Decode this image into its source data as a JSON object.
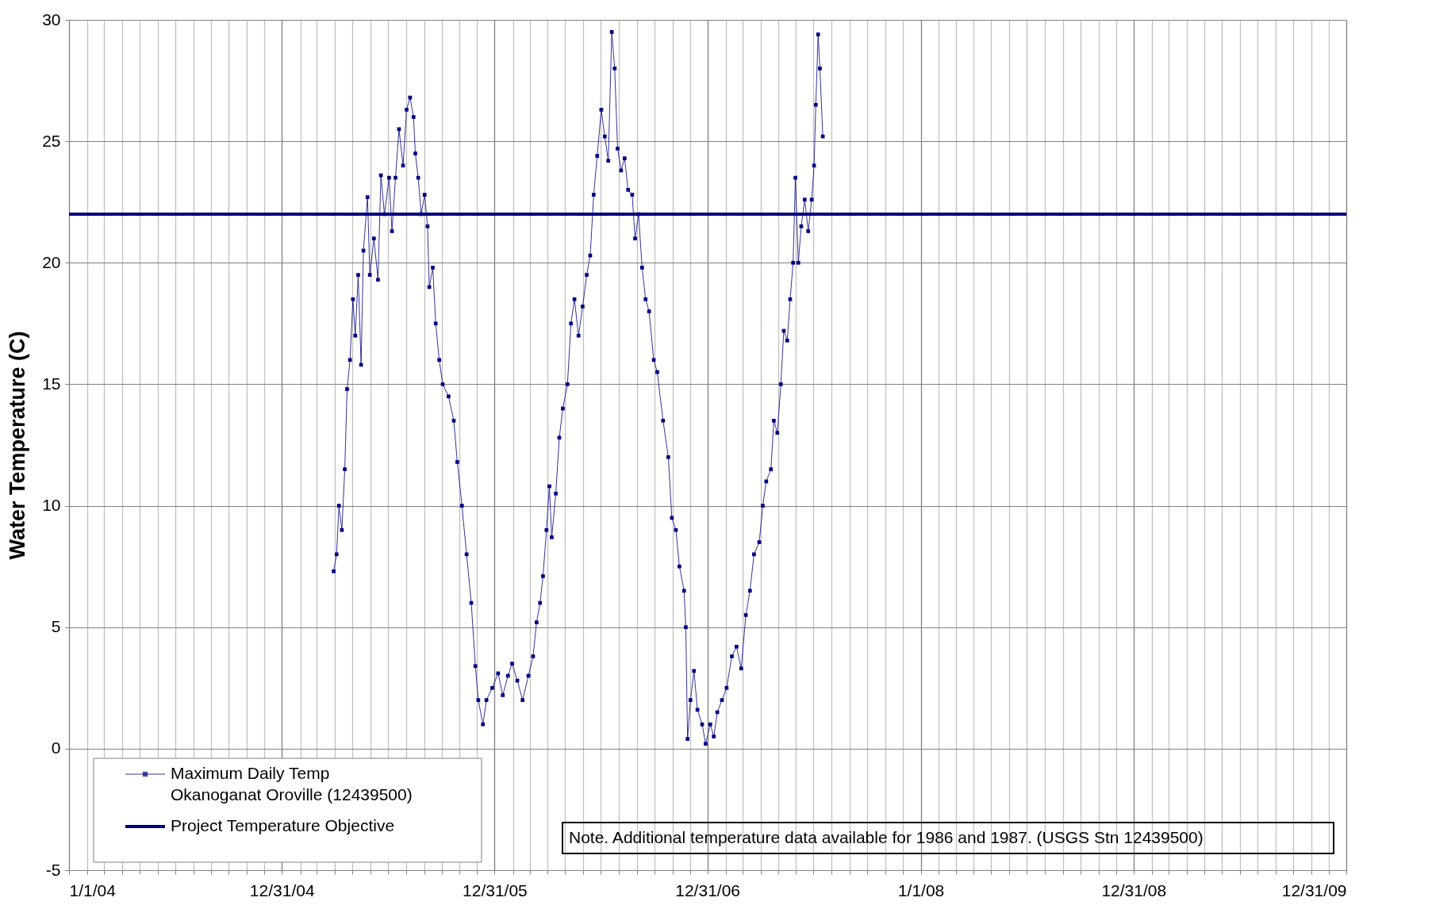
{
  "chart_data": {
    "type": "line",
    "ylabel": "Water Temperature (C)",
    "xlim": [
      "2004-01-01",
      "2009-12-31"
    ],
    "ylim": [
      -5,
      30
    ],
    "yticks": [
      -5,
      0,
      5,
      10,
      15,
      20,
      25,
      30
    ],
    "xticks": [
      {
        "value": "2004-01-01",
        "label": "1/1/04"
      },
      {
        "value": "2004-02-01",
        "label": null
      },
      {
        "value": "2004-03-01",
        "label": null
      },
      {
        "value": "2004-04-01",
        "label": null
      },
      {
        "value": "2004-05-01",
        "label": null
      },
      {
        "value": "2004-06-01",
        "label": null
      },
      {
        "value": "2004-07-01",
        "label": null
      },
      {
        "value": "2004-08-01",
        "label": null
      },
      {
        "value": "2004-09-01",
        "label": null
      },
      {
        "value": "2004-10-01",
        "label": null
      },
      {
        "value": "2004-11-01",
        "label": null
      },
      {
        "value": "2004-12-01",
        "label": null
      },
      {
        "value": "2004-12-31",
        "label": "12/31/04"
      },
      {
        "value": "2005-02-01",
        "label": null
      },
      {
        "value": "2005-03-01",
        "label": null
      },
      {
        "value": "2005-04-01",
        "label": null
      },
      {
        "value": "2005-05-01",
        "label": null
      },
      {
        "value": "2005-06-01",
        "label": null
      },
      {
        "value": "2005-07-01",
        "label": null
      },
      {
        "value": "2005-08-01",
        "label": null
      },
      {
        "value": "2005-09-01",
        "label": null
      },
      {
        "value": "2005-10-01",
        "label": null
      },
      {
        "value": "2005-11-01",
        "label": null
      },
      {
        "value": "2005-12-01",
        "label": null
      },
      {
        "value": "2005-12-31",
        "label": "12/31/05"
      },
      {
        "value": "2006-02-01",
        "label": null
      },
      {
        "value": "2006-03-01",
        "label": null
      },
      {
        "value": "2006-04-01",
        "label": null
      },
      {
        "value": "2006-05-01",
        "label": null
      },
      {
        "value": "2006-06-01",
        "label": null
      },
      {
        "value": "2006-07-01",
        "label": null
      },
      {
        "value": "2006-08-01",
        "label": null
      },
      {
        "value": "2006-09-01",
        "label": null
      },
      {
        "value": "2006-10-01",
        "label": null
      },
      {
        "value": "2006-11-01",
        "label": null
      },
      {
        "value": "2006-12-01",
        "label": null
      },
      {
        "value": "2006-12-31",
        "label": "12/31/06"
      },
      {
        "value": "2007-02-01",
        "label": null
      },
      {
        "value": "2007-03-01",
        "label": null
      },
      {
        "value": "2007-04-01",
        "label": null
      },
      {
        "value": "2007-05-01",
        "label": null
      },
      {
        "value": "2007-06-01",
        "label": null
      },
      {
        "value": "2007-07-01",
        "label": null
      },
      {
        "value": "2007-08-01",
        "label": null
      },
      {
        "value": "2007-09-01",
        "label": null
      },
      {
        "value": "2007-10-01",
        "label": null
      },
      {
        "value": "2007-11-01",
        "label": null
      },
      {
        "value": "2007-12-01",
        "label": null
      },
      {
        "value": "2008-01-01",
        "label": "1/1/08"
      },
      {
        "value": "2008-02-01",
        "label": null
      },
      {
        "value": "2008-03-01",
        "label": null
      },
      {
        "value": "2008-04-01",
        "label": null
      },
      {
        "value": "2008-05-01",
        "label": null
      },
      {
        "value": "2008-06-01",
        "label": null
      },
      {
        "value": "2008-07-01",
        "label": null
      },
      {
        "value": "2008-08-01",
        "label": null
      },
      {
        "value": "2008-09-01",
        "label": null
      },
      {
        "value": "2008-10-01",
        "label": null
      },
      {
        "value": "2008-11-01",
        "label": null
      },
      {
        "value": "2008-12-01",
        "label": null
      },
      {
        "value": "2008-12-31",
        "label": "12/31/08"
      },
      {
        "value": "2009-02-01",
        "label": null
      },
      {
        "value": "2009-03-01",
        "label": null
      },
      {
        "value": "2009-04-01",
        "label": null
      },
      {
        "value": "2009-05-01",
        "label": null
      },
      {
        "value": "2009-06-01",
        "label": null
      },
      {
        "value": "2009-07-01",
        "label": null
      },
      {
        "value": "2009-08-01",
        "label": null
      },
      {
        "value": "2009-09-01",
        "label": null
      },
      {
        "value": "2009-10-01",
        "label": null
      },
      {
        "value": "2009-11-01",
        "label": null
      },
      {
        "value": "2009-12-01",
        "label": null
      },
      {
        "value": "2009-12-31",
        "label": "12/31/09"
      }
    ],
    "x": [
      "2005-03-30",
      "2005-04-04",
      "2005-04-08",
      "2005-04-13",
      "2005-04-18",
      "2005-04-22",
      "2005-04-27",
      "2005-05-02",
      "2005-05-06",
      "2005-05-11",
      "2005-05-16",
      "2005-05-20",
      "2005-05-27",
      "2005-05-31",
      "2005-06-07",
      "2005-06-14",
      "2005-06-19",
      "2005-06-25",
      "2005-07-03",
      "2005-07-08",
      "2005-07-14",
      "2005-07-20",
      "2005-07-27",
      "2005-08-02",
      "2005-08-08",
      "2005-08-14",
      "2005-08-17",
      "2005-08-22",
      "2005-08-27",
      "2005-09-02",
      "2005-09-07",
      "2005-09-10",
      "2005-09-16",
      "2005-09-21",
      "2005-09-27",
      "2005-10-03",
      "2005-10-13",
      "2005-10-22",
      "2005-10-28",
      "2005-11-05",
      "2005-11-13",
      "2005-11-21",
      "2005-11-28",
      "2005-12-03",
      "2005-12-11",
      "2005-12-17",
      "2005-12-27",
      "2006-01-06",
      "2006-01-14",
      "2006-01-23",
      "2006-01-30",
      "2006-02-08",
      "2006-02-17",
      "2006-02-27",
      "2006-03-07",
      "2006-03-13",
      "2006-03-19",
      "2006-03-24",
      "2006-03-30",
      "2006-04-04",
      "2006-04-08",
      "2006-04-15",
      "2006-04-21",
      "2006-04-27",
      "2006-05-05",
      "2006-05-11",
      "2006-05-17",
      "2006-05-24",
      "2006-05-31",
      "2006-06-07",
      "2006-06-13",
      "2006-06-19",
      "2006-06-25",
      "2006-07-02",
      "2006-07-08",
      "2006-07-14",
      "2006-07-20",
      "2006-07-25",
      "2006-07-30",
      "2006-08-05",
      "2006-08-11",
      "2006-08-17",
      "2006-08-24",
      "2006-08-29",
      "2006-09-04",
      "2006-09-10",
      "2006-09-16",
      "2006-09-22",
      "2006-09-30",
      "2006-10-06",
      "2006-10-16",
      "2006-10-25",
      "2006-10-31",
      "2006-11-07",
      "2006-11-13",
      "2006-11-21",
      "2006-11-24",
      "2006-11-27",
      "2006-12-02",
      "2006-12-08",
      "2006-12-14",
      "2006-12-22",
      "2006-12-28",
      "2007-01-05",
      "2007-01-11",
      "2007-01-17",
      "2007-01-25",
      "2007-02-02",
      "2007-02-11",
      "2007-02-19",
      "2007-02-27",
      "2007-03-07",
      "2007-03-14",
      "2007-03-21",
      "2007-03-30",
      "2007-04-05",
      "2007-04-11",
      "2007-04-19",
      "2007-04-24",
      "2007-04-30",
      "2007-05-06",
      "2007-05-11",
      "2007-05-17",
      "2007-05-22",
      "2007-05-27",
      "2007-05-31",
      "2007-06-05",
      "2007-06-10",
      "2007-06-16",
      "2007-06-22",
      "2007-06-28",
      "2007-07-02",
      "2007-07-05",
      "2007-07-09",
      "2007-07-12",
      "2007-07-17"
    ],
    "series": [
      {
        "name": "Maximum Daily Temp\nOkanoganat Oroville (12439500)",
        "color": "#000080",
        "values": [
          7.3,
          8.0,
          10.0,
          9.0,
          11.5,
          14.8,
          16.0,
          18.5,
          17.0,
          19.5,
          15.8,
          20.5,
          22.7,
          19.5,
          21.0,
          19.3,
          23.6,
          22.0,
          23.5,
          21.3,
          23.5,
          25.5,
          24.0,
          26.3,
          26.8,
          26.0,
          24.5,
          23.5,
          22.0,
          22.8,
          21.5,
          19.0,
          19.8,
          17.5,
          16.0,
          15.0,
          14.5,
          13.5,
          11.8,
          10.0,
          8.0,
          6.0,
          3.4,
          2.0,
          1.0,
          2.0,
          2.5,
          3.1,
          2.2,
          3.0,
          3.5,
          2.8,
          2.0,
          3.0,
          3.8,
          5.2,
          6.0,
          7.1,
          9.0,
          10.8,
          8.7,
          10.5,
          12.8,
          14.0,
          15.0,
          17.5,
          18.5,
          17.0,
          18.2,
          19.5,
          20.3,
          22.8,
          24.4,
          26.3,
          25.2,
          24.2,
          29.5,
          28.0,
          24.7,
          23.8,
          24.3,
          23.0,
          22.8,
          21.0,
          22.0,
          19.8,
          18.5,
          18.0,
          16.0,
          15.5,
          13.5,
          12.0,
          9.5,
          9.0,
          7.5,
          6.5,
          5.0,
          0.4,
          2.0,
          3.2,
          1.6,
          1.0,
          0.2,
          1.0,
          0.5,
          1.5,
          2.0,
          2.5,
          3.8,
          4.2,
          3.3,
          5.5,
          6.5,
          8.0,
          8.5,
          10.0,
          11.0,
          11.5,
          13.5,
          13.0,
          15.0,
          17.2,
          16.8,
          18.5,
          20.0,
          23.5,
          20.0,
          21.5,
          22.6,
          21.3,
          22.6,
          24.0,
          26.5,
          29.4,
          28.0,
          25.2
        ]
      }
    ],
    "ref_lines": [
      {
        "axis": "y",
        "value": 22,
        "label": "Project Temperature Objective",
        "color": "#000080",
        "line_style": "solid"
      }
    ],
    "annotations": [
      "Note.  Additional temperature data available for 1986 and 1987. (USGS Stn 12439500)"
    ],
    "grid": true,
    "legend": "bottom left",
    "marker": "square",
    "line_style": "solid"
  }
}
